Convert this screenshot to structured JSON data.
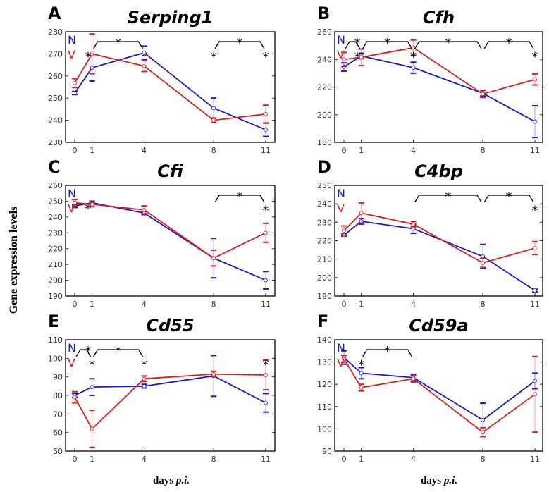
{
  "ylabel": "Gene expression levels",
  "xlabel_prefix": "days",
  "xlabel_italic": "p.i.",
  "colors": {
    "N": "#1a1acc",
    "V": "#d42020",
    "annotation": "#000000"
  },
  "chart_data": [
    {
      "panel": "A",
      "title": "Serping1",
      "type": "line",
      "x": [
        0,
        1,
        4,
        8,
        11
      ],
      "ylim": [
        230,
        280
      ],
      "yticks": [
        230,
        240,
        250,
        260,
        270,
        280
      ],
      "series": [
        {
          "name": "N",
          "values": [
            252.3,
            263.7,
            270.5,
            245.5,
            235.7
          ],
          "err": [
            0.7,
            6,
            3,
            4.5,
            3
          ]
        },
        {
          "name": "V",
          "values": [
            256.8,
            270,
            264.5,
            240,
            242.8
          ],
          "err": [
            2,
            9,
            2.5,
            1,
            4
          ]
        }
      ],
      "brackets": [
        [
          1,
          4
        ],
        [
          8,
          11
        ]
      ],
      "stars": [
        [
          0,
          270
        ],
        [
          4,
          270
        ],
        [
          8,
          270
        ],
        [
          11,
          270
        ]
      ]
    },
    {
      "panel": "B",
      "title": "Cfh",
      "type": "line",
      "x": [
        0,
        1,
        4,
        8,
        11
      ],
      "ylim": [
        180,
        260
      ],
      "yticks": [
        180,
        200,
        220,
        240,
        260
      ],
      "series": [
        {
          "name": "N",
          "values": [
            234.5,
            242.5,
            234,
            215.5,
            195
          ],
          "err": [
            3,
            2,
            4,
            2,
            11.5
          ]
        },
        {
          "name": "V",
          "values": [
            240,
            241.5,
            248.5,
            215,
            225.5
          ],
          "err": [
            5,
            6,
            5.5,
            2.5,
            4
          ]
        }
      ],
      "brackets": [
        [
          0,
          1
        ],
        [
          1,
          4
        ],
        [
          4,
          8
        ],
        [
          8,
          11
        ]
      ],
      "stars": [
        [
          0,
          244
        ],
        [
          4,
          244
        ],
        [
          11,
          244
        ]
      ]
    },
    {
      "panel": "C",
      "title": "Cfi",
      "type": "line",
      "x": [
        0,
        1,
        4,
        8,
        11
      ],
      "ylim": [
        190,
        260
      ],
      "yticks": [
        190,
        200,
        210,
        220,
        230,
        240,
        250,
        260
      ],
      "series": [
        {
          "name": "N",
          "values": [
            247,
            249,
            242.5,
            214,
            200
          ],
          "err": [
            1,
            1,
            1,
            12.5,
            5.5
          ]
        },
        {
          "name": "V",
          "values": [
            249,
            248,
            244.5,
            214,
            230
          ],
          "err": [
            2,
            1.5,
            2.5,
            5,
            6
          ]
        }
      ],
      "brackets": [
        [
          8,
          11
        ]
      ],
      "stars": [
        [
          0,
          247
        ],
        [
          11,
          246
        ]
      ]
    },
    {
      "panel": "D",
      "title": "C4bp",
      "type": "line",
      "x": [
        0,
        1,
        4,
        8,
        11
      ],
      "ylim": [
        190,
        250
      ],
      "yticks": [
        190,
        200,
        210,
        220,
        230,
        240,
        250
      ],
      "series": [
        {
          "name": "N",
          "values": [
            223,
            230.5,
            226.5,
            211.5,
            193
          ],
          "err": [
            0.5,
            1.5,
            2.5,
            6.5,
            0.7
          ]
        },
        {
          "name": "V",
          "values": [
            225.5,
            235,
            229,
            208,
            216
          ],
          "err": [
            2.5,
            5.5,
            1.5,
            2.5,
            3.5
          ]
        }
      ],
      "brackets": [
        [
          4,
          8
        ],
        [
          8,
          11
        ]
      ],
      "stars": [
        [
          11,
          238
        ]
      ]
    },
    {
      "panel": "E",
      "title": "Cd55",
      "type": "line",
      "x": [
        0,
        1,
        4,
        8,
        11
      ],
      "ylim": [
        50,
        110
      ],
      "yticks": [
        50,
        60,
        70,
        80,
        90,
        100,
        110
      ],
      "series": [
        {
          "name": "N",
          "values": [
            80,
            84.5,
            85,
            90.5,
            76
          ],
          "err": [
            1,
            4.5,
            1,
            11,
            5
          ]
        },
        {
          "name": "V",
          "values": [
            79,
            62,
            89,
            91.5,
            91
          ],
          "err": [
            3,
            10,
            1.5,
            1.5,
            8
          ]
        }
      ],
      "brackets": [
        [
          0,
          1
        ],
        [
          1,
          4
        ]
      ],
      "stars": [
        [
          1,
          98
        ],
        [
          4,
          98
        ],
        [
          11,
          98
        ]
      ]
    },
    {
      "panel": "F",
      "title": "Cd59a",
      "type": "line",
      "x": [
        0,
        1,
        4,
        8,
        11
      ],
      "ylim": [
        90,
        140
      ],
      "yticks": [
        90,
        100,
        110,
        120,
        130,
        140
      ],
      "series": [
        {
          "name": "N",
          "values": [
            132,
            125,
            123,
            104,
            121.5
          ],
          "err": [
            3,
            2.5,
            1.5,
            7.5,
            3.5
          ]
        },
        {
          "name": "V",
          "values": [
            131.5,
            118.5,
            122.5,
            98.5,
            115.5
          ],
          "err": [
            1.5,
            1.5,
            1.5,
            2,
            17
          ]
        }
      ],
      "brackets": [
        [
          1,
          4
        ]
      ],
      "stars": [
        [
          1,
          130
        ]
      ]
    }
  ]
}
